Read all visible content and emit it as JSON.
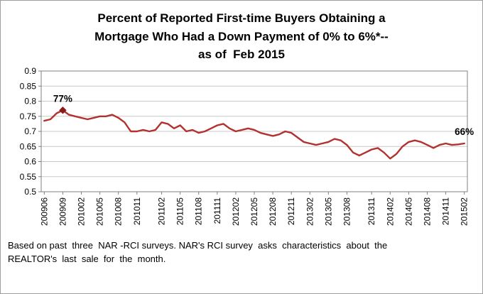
{
  "title": {
    "line1": "Percent of Reported First-time Buyers Obtaining a",
    "line2": "Mortgage Who Had a Down Payment of 0% to 6%*--",
    "line3": "as of  Feb 2015"
  },
  "footer": {
    "line1": "Based on past  three  NAR -RCI surveys. NAR's RCI survey  asks  characteristics  about  the",
    "line2": "REALTOR's  last  sale  for  the  month."
  },
  "chart_data": {
    "type": "line",
    "title": "Percent of Reported First-time Buyers Obtaining a Mortgage Who Had a Down Payment of 0% to 6%*-- as of Feb 2015",
    "xlabel": "",
    "ylabel": "",
    "ylim": [
      0.5,
      0.9
    ],
    "grid": true,
    "legend": "none",
    "line_color": "#b23230",
    "marker_color": "#8c1a16",
    "grid_color": "#c9c9c9",
    "axis_color": "#808080",
    "y_ticks": [
      0.9,
      0.85,
      0.8,
      0.75,
      0.7,
      0.65,
      0.6,
      0.55,
      0.5
    ],
    "y_tick_labels": [
      "0.9",
      "0.85",
      "0.8",
      "0.75",
      "0.7",
      "0.65",
      "0.6",
      "0.55",
      "0.5"
    ],
    "x_tick_labels": [
      "200906",
      "200909",
      "201002",
      "201005",
      "201008",
      "201011",
      "201102",
      "201105",
      "201108",
      "201111",
      "201202",
      "201205",
      "201208",
      "201211",
      "201302",
      "201305",
      "201308",
      "201311",
      "201402",
      "201405",
      "201408",
      "201411",
      "201502"
    ],
    "x": [
      "200906",
      "200907",
      "200908",
      "200909",
      "200910",
      "200911",
      "200912",
      "201001",
      "201002",
      "201003",
      "201004",
      "201005",
      "201006",
      "201007",
      "201008",
      "201009",
      "201010",
      "201011",
      "201012",
      "201101",
      "201102",
      "201103",
      "201104",
      "201105",
      "201106",
      "201107",
      "201108",
      "201109",
      "201110",
      "201111",
      "201112",
      "201201",
      "201202",
      "201203",
      "201204",
      "201205",
      "201206",
      "201207",
      "201208",
      "201209",
      "201210",
      "201211",
      "201212",
      "201301",
      "201302",
      "201303",
      "201304",
      "201305",
      "201306",
      "201307",
      "201308",
      "201309",
      "201310",
      "201311",
      "201312",
      "201401",
      "201402",
      "201403",
      "201404",
      "201405",
      "201406",
      "201407",
      "201408",
      "201409",
      "201410",
      "201411",
      "201412",
      "201501",
      "201502"
    ],
    "values": [
      0.735,
      0.74,
      0.76,
      0.77,
      0.755,
      0.75,
      0.745,
      0.74,
      0.745,
      0.75,
      0.75,
      0.755,
      0.745,
      0.73,
      0.7,
      0.7,
      0.705,
      0.7,
      0.705,
      0.73,
      0.725,
      0.71,
      0.72,
      0.7,
      0.705,
      0.695,
      0.7,
      0.71,
      0.72,
      0.725,
      0.71,
      0.7,
      0.705,
      0.71,
      0.705,
      0.695,
      0.69,
      0.685,
      0.69,
      0.7,
      0.695,
      0.68,
      0.665,
      0.66,
      0.655,
      0.66,
      0.665,
      0.675,
      0.67,
      0.655,
      0.63,
      0.62,
      0.63,
      0.64,
      0.645,
      0.63,
      0.61,
      0.625,
      0.65,
      0.665,
      0.67,
      0.665,
      0.655,
      0.645,
      0.655,
      0.66,
      0.655,
      0.657,
      0.66
    ],
    "annotations": [
      {
        "label": "77%",
        "x": "200909",
        "value": 0.77
      },
      {
        "label": "66%",
        "x": "201502",
        "value": 0.66
      }
    ]
  }
}
